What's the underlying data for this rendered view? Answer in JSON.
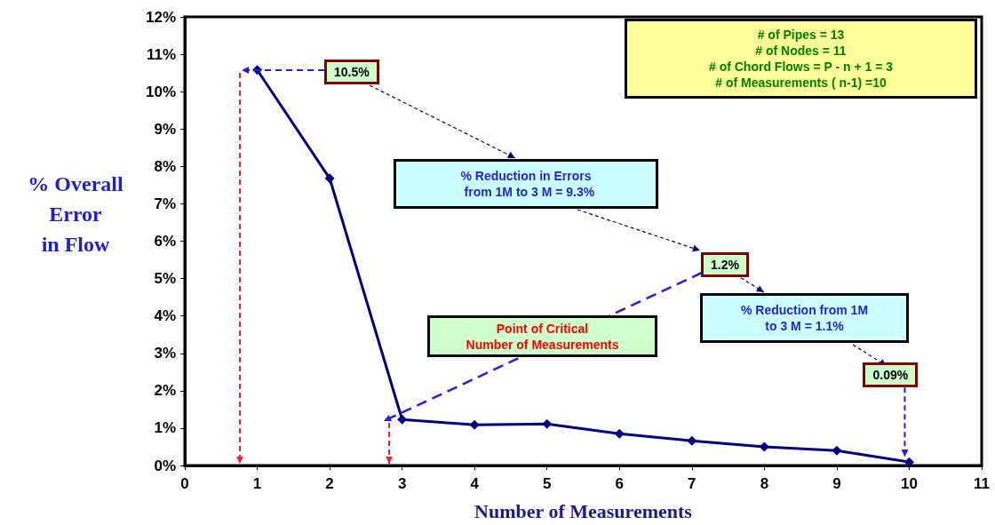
{
  "chart_data": {
    "type": "line",
    "xlabel": "Number of Measurements",
    "ylabel": "% Overall Error in Flow",
    "x": [
      1,
      2,
      3,
      4,
      5,
      6,
      7,
      8,
      9,
      10
    ],
    "series": [
      {
        "color": "#000080",
        "values": [
          10.58,
          7.68,
          1.23,
          1.09,
          1.11,
          0.85,
          0.66,
          0.5,
          0.4,
          0.09
        ]
      }
    ],
    "xlim": [
      0,
      11
    ],
    "xticks": [
      0,
      1,
      2,
      3,
      4,
      5,
      6,
      7,
      8,
      9,
      10,
      11
    ],
    "ylim": [
      0,
      12
    ],
    "yticks": [
      {
        "value": 0,
        "label": "0%"
      },
      {
        "value": 1,
        "label": "1%"
      },
      {
        "value": 2,
        "label": "2%"
      },
      {
        "value": 3,
        "label": "3%"
      },
      {
        "value": 4,
        "label": "4%"
      },
      {
        "value": 5,
        "label": "5%"
      },
      {
        "value": 6,
        "label": "6%"
      },
      {
        "value": 7,
        "label": "7%"
      },
      {
        "value": 8,
        "label": "8%"
      },
      {
        "value": 9,
        "label": "9%"
      },
      {
        "value": 10,
        "label": "10%"
      },
      {
        "value": 11,
        "label": "11%"
      },
      {
        "value": 12,
        "label": "12%"
      }
    ],
    "annotations": [
      "10.5%",
      "1.2%",
      {
        "text": "0.09%",
        "x": 10,
        "y": 0.09
      },
      "# of Pipes = 13\n# of Nodes = 11\n# of Chord Flows = P - n + 1 = 3\n# of Measurements ( n-1) =10",
      "% Reduction in Errors\n  from 1M to 3 M = 9.3%",
      "Point of Critical\nNumber of Measurements",
      "% Reduction from 1M\nto 3 M = 1.1%"
    ],
    "grid": false,
    "marker": "diamond",
    "line_style": "solid"
  }
}
